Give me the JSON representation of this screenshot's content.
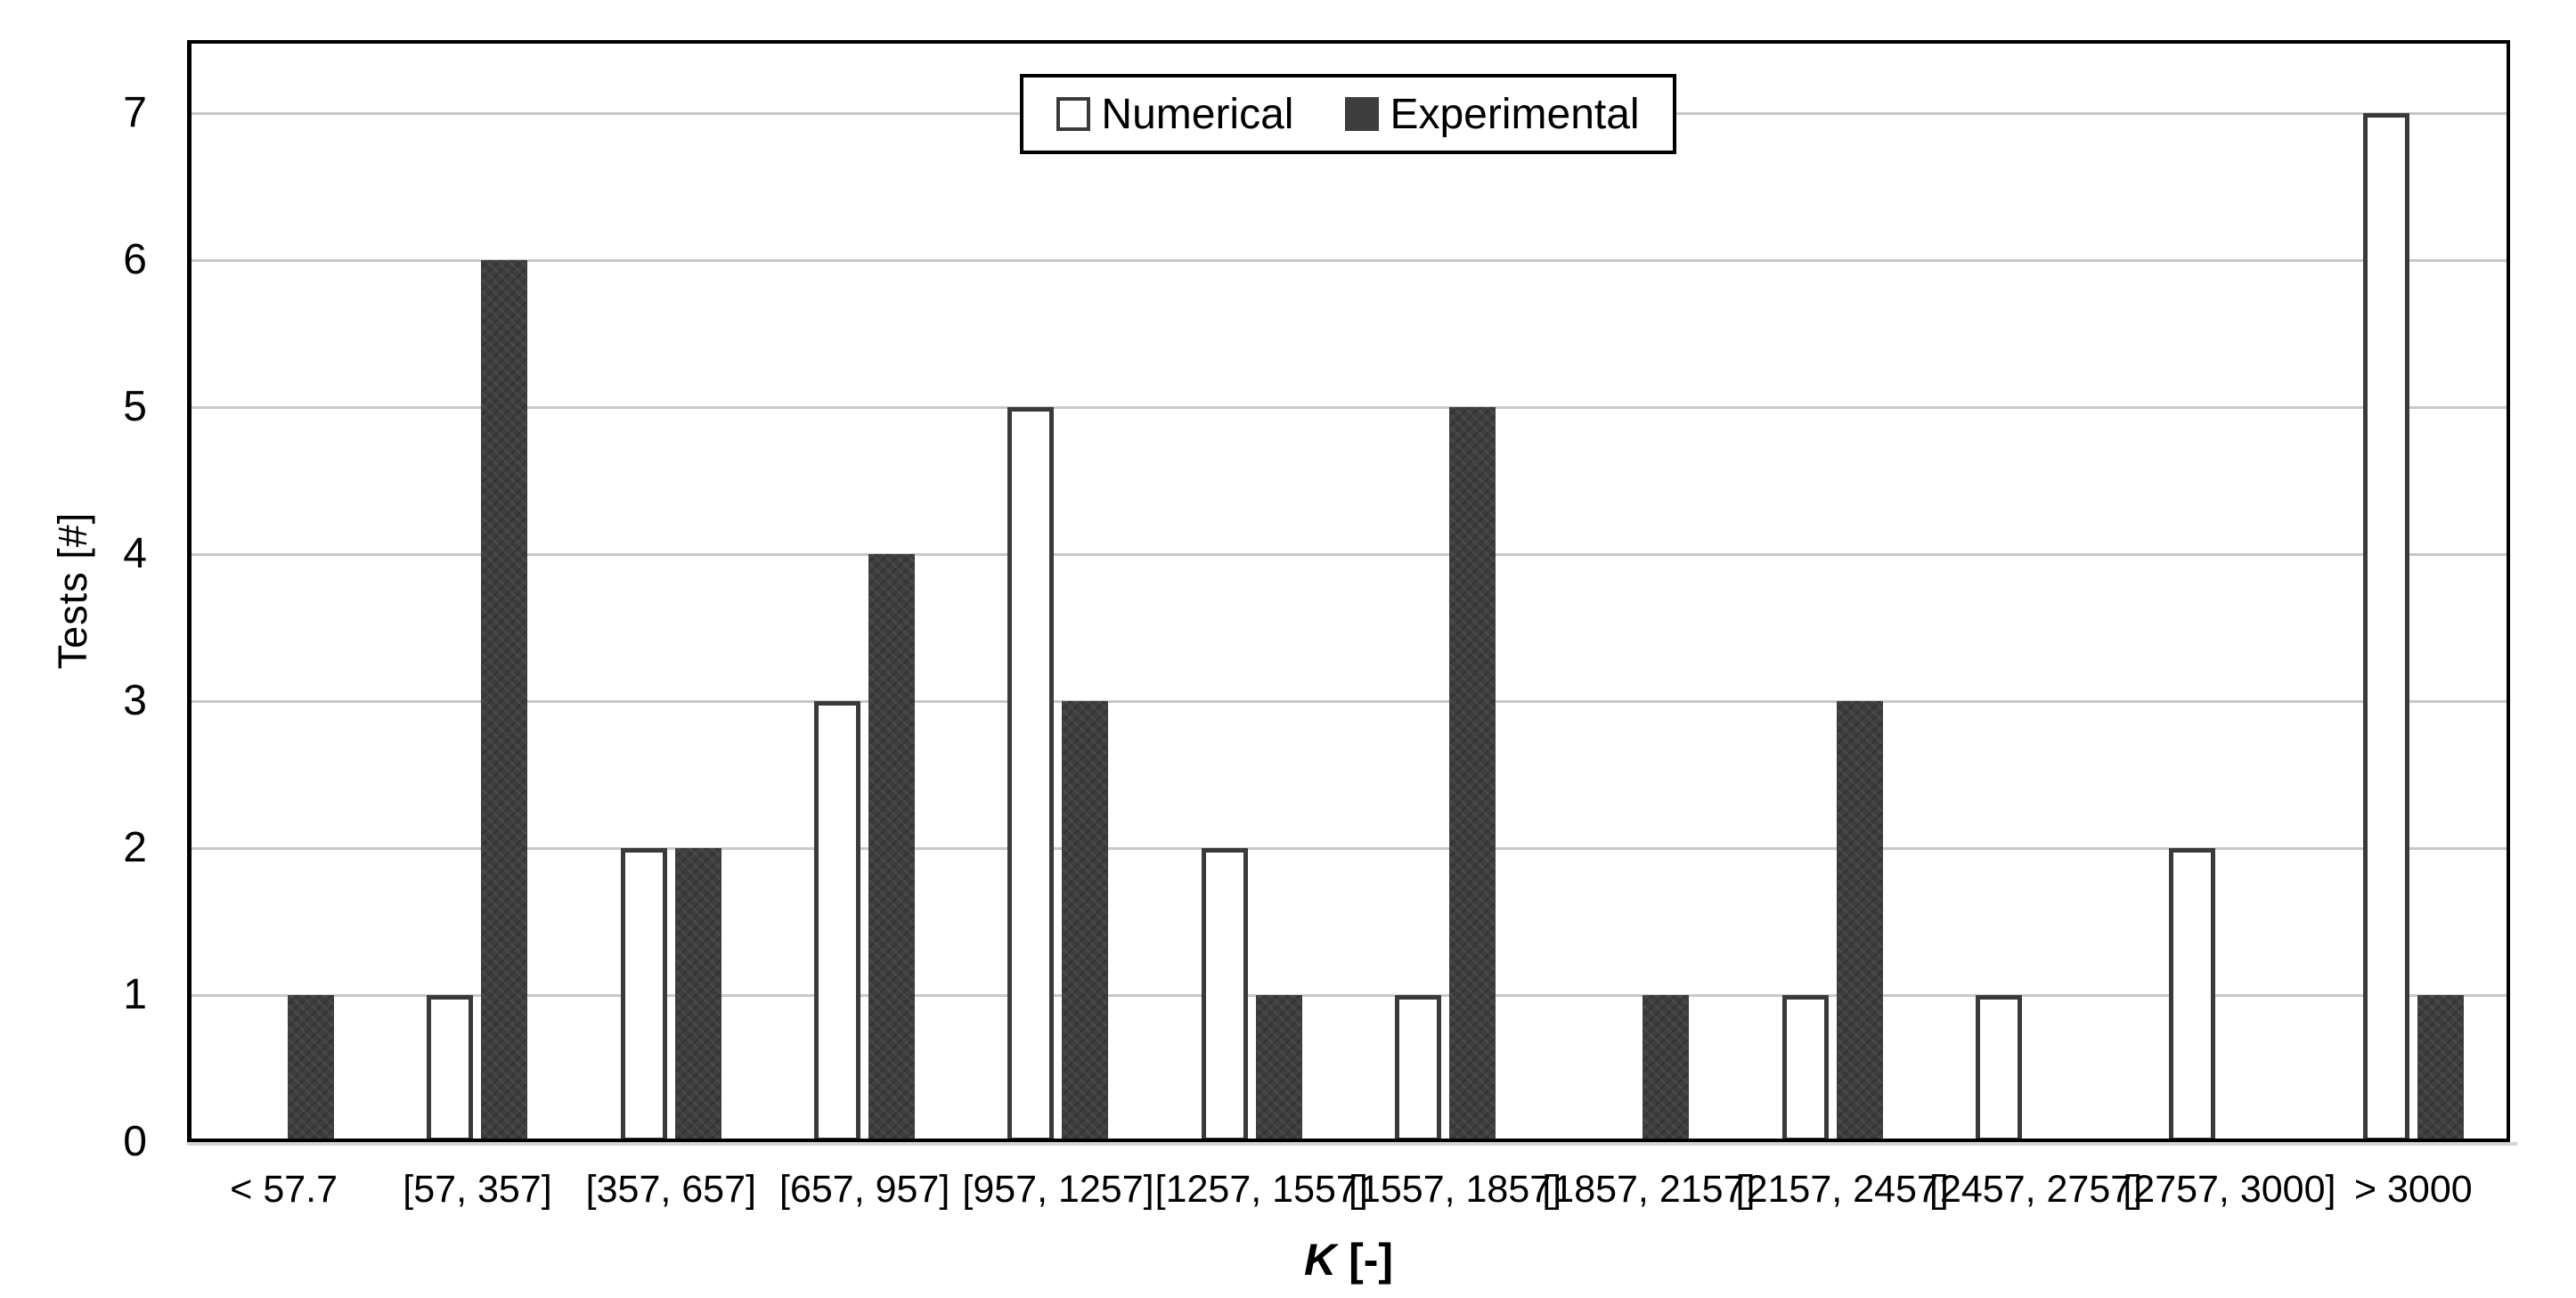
{
  "chart_data": {
    "type": "bar",
    "title": "",
    "categories": [
      "< 57.7",
      "[57, 357]",
      "[357, 657]",
      "[657, 957]",
      "[957, 1257]",
      "[1257, 1557]",
      "[1557, 1857]",
      "[1857, 2157]",
      "[2157, 2457]",
      "[2457, 2757]",
      "[2757, 3000]",
      "> 3000"
    ],
    "series": [
      {
        "name": "Numerical",
        "values": [
          0,
          1,
          2,
          3,
          5,
          2,
          1,
          0,
          1,
          1,
          2,
          7
        ],
        "fill": "#ffffff",
        "border": "#3a3a3a"
      },
      {
        "name": "Experimental",
        "values": [
          1,
          6,
          2,
          4,
          3,
          1,
          5,
          1,
          3,
          0,
          0,
          1
        ],
        "fill": "#3e3e3e",
        "border": "#333333"
      }
    ],
    "xlabel_symbol": "K",
    "xlabel_unit": "[-]",
    "ylabel": "Tests [#]",
    "ylim": [
      0,
      7.5
    ],
    "yticks": [
      0,
      1,
      2,
      3,
      4,
      5,
      6,
      7
    ],
    "grid": "horizontal",
    "legend_position": "top-center"
  },
  "colors": {
    "gridline": "#c8c8c8",
    "axis": "#000000",
    "axis_shadow": "#d4d4d4",
    "text": "#000000",
    "plot_background": "#ffffff"
  }
}
